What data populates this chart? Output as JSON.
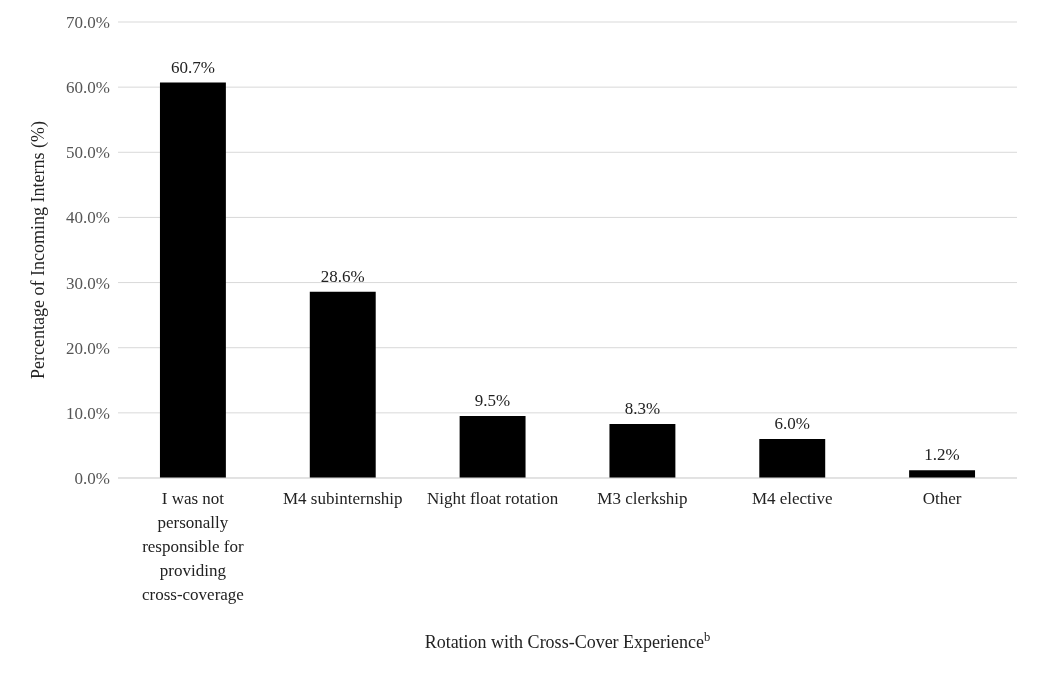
{
  "chart_data": {
    "type": "bar",
    "xlabel": "Rotation with Cross-Cover Experience$^{b}$",
    "ylabel": "Percentage of Incoming Interns (%)",
    "categories": [
      "I was not personally responsible for providing cross-coverage",
      "M4 subinternship",
      "Night float rotation",
      "M3 clerkship",
      "M4 elective",
      "Other"
    ],
    "values": [
      60.7,
      28.6,
      9.5,
      8.3,
      6.0,
      1.2
    ],
    "value_labels": [
      "60.7%",
      "28.6%",
      "9.5%",
      "8.3%",
      "6.0%",
      "1.2%"
    ],
    "color": "#000000",
    "ylim": [
      0,
      70
    ],
    "yticks": [
      {
        "value": 0,
        "label": "0.0%"
      },
      {
        "value": 10,
        "label": "10.0%"
      },
      {
        "value": 20,
        "label": "20.0%"
      },
      {
        "value": 30,
        "label": "30.0%"
      },
      {
        "value": 40,
        "label": "40.0%"
      },
      {
        "value": 50,
        "label": "50.0%"
      },
      {
        "value": 60,
        "label": "60.0%"
      },
      {
        "value": 70,
        "label": "70.0%"
      }
    ],
    "grid": "y"
  }
}
